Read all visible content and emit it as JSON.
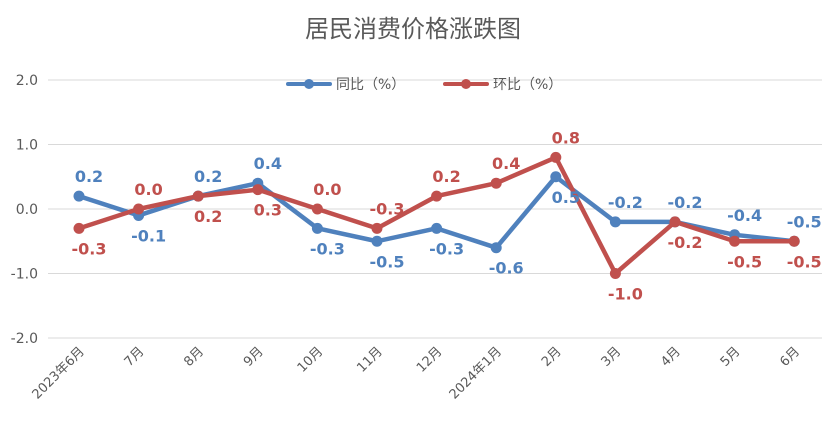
{
  "chart_data": {
    "type": "line",
    "title": "居民消费价格涨跌图",
    "categories": [
      "2023年6月",
      "7月",
      "8月",
      "9月",
      "10月",
      "11月",
      "12月",
      "2024年1月",
      "2月",
      "3月",
      "4月",
      "5月",
      "6月"
    ],
    "series": [
      {
        "name": "同比（%）",
        "color": "#4F81BD",
        "values": [
          0.2,
          -0.1,
          0.2,
          0.4,
          -0.3,
          -0.5,
          -0.3,
          -0.6,
          0.5,
          -0.2,
          -0.2,
          -0.4,
          -0.5
        ],
        "labels": [
          "0.2",
          "-0.1",
          "0.2",
          "0.4",
          "-0.3",
          "-0.5",
          "-0.3",
          "-0.6",
          "0.5",
          "-0.2",
          "-0.2",
          "-0.4",
          "-0.5"
        ]
      },
      {
        "name": "环比（%）",
        "color": "#C0504D",
        "values": [
          -0.3,
          0.0,
          0.2,
          0.3,
          0.0,
          -0.3,
          0.2,
          0.4,
          0.8,
          -1.0,
          -0.2,
          -0.5,
          -0.5
        ],
        "labels": [
          "-0.3",
          "0.0",
          "0.2",
          "0.3",
          "0.0",
          "-0.3",
          "0.2",
          "0.4",
          "0.8",
          "-1.0",
          "-0.2",
          "-0.5",
          "-0.5"
        ]
      }
    ],
    "ylim": [
      -2.0,
      2.0
    ],
    "yticks": [
      2.0,
      1.0,
      0.0,
      -1.0,
      -2.0
    ],
    "ytick_labels": [
      "2.0",
      "1.0",
      "0.0",
      "-1.0",
      "-2.0"
    ],
    "grid": true,
    "legend_position": "top-center"
  }
}
